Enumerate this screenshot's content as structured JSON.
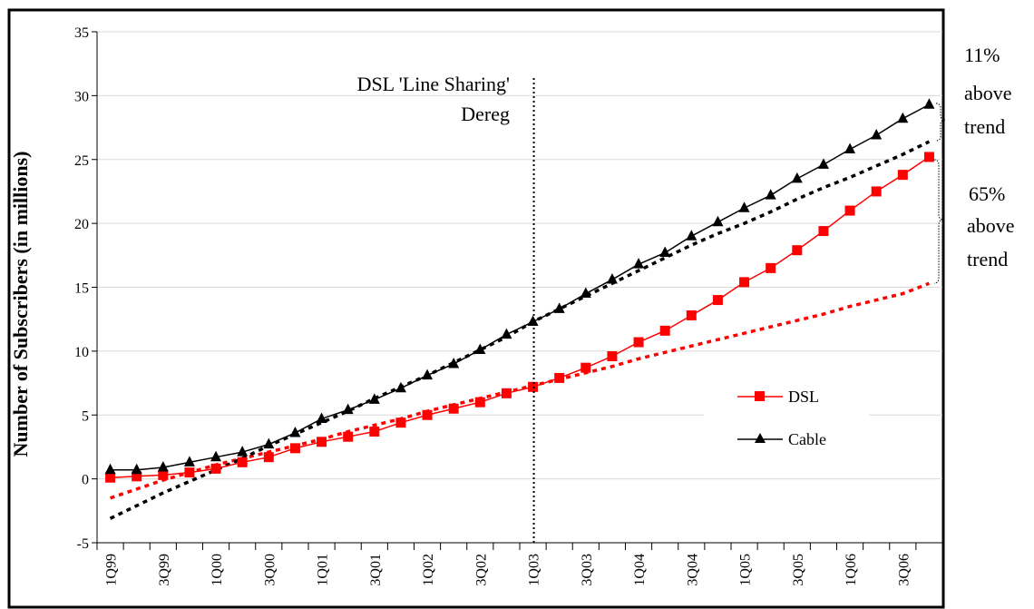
{
  "chart_data": {
    "type": "line",
    "title": "",
    "xlabel": "",
    "ylabel": "Number of Subscribers (in millions)",
    "ylim": [
      -5,
      35
    ],
    "yticks": [
      -5,
      0,
      5,
      10,
      15,
      20,
      25,
      30,
      35
    ],
    "grid": "horizontal",
    "legend_placement": "lower-right",
    "x_tick_labels": [
      "1Q99",
      "3Q99",
      "1Q00",
      "3Q00",
      "1Q01",
      "3Q01",
      "1Q02",
      "3Q02",
      "1Q03",
      "3Q03",
      "1Q04",
      "3Q04",
      "1Q05",
      "3Q05",
      "1Q06",
      "3Q06"
    ],
    "categories": [
      "1Q99",
      "2Q99",
      "3Q99",
      "4Q99",
      "1Q00",
      "2Q00",
      "3Q00",
      "4Q00",
      "1Q01",
      "2Q01",
      "3Q01",
      "4Q01",
      "1Q02",
      "2Q02",
      "3Q02",
      "4Q02",
      "1Q03",
      "2Q03",
      "3Q03",
      "4Q03",
      "1Q04",
      "2Q04",
      "3Q04",
      "4Q04",
      "1Q05",
      "2Q05",
      "3Q05",
      "4Q05",
      "1Q06",
      "2Q06",
      "3Q06",
      "4Q06"
    ],
    "series": [
      {
        "name": "DSL",
        "color": "#ff0000",
        "marker": "square",
        "values": [
          0.1,
          0.2,
          0.3,
          0.5,
          0.8,
          1.3,
          1.7,
          2.4,
          2.9,
          3.3,
          3.7,
          4.4,
          5.0,
          5.5,
          6.0,
          6.7,
          7.2,
          7.9,
          8.7,
          9.6,
          10.7,
          11.6,
          12.8,
          14.0,
          15.4,
          16.5,
          17.9,
          19.4,
          21.0,
          22.5,
          23.8,
          25.2
        ]
      },
      {
        "name": "Cable",
        "color": "#000000",
        "marker": "triangle",
        "values": [
          0.7,
          0.7,
          0.9,
          1.3,
          1.7,
          2.1,
          2.7,
          3.6,
          4.7,
          5.4,
          6.2,
          7.1,
          8.1,
          9.0,
          10.1,
          11.3,
          12.3,
          13.3,
          14.5,
          15.6,
          16.8,
          17.7,
          19.0,
          20.1,
          21.2,
          22.2,
          23.5,
          24.6,
          25.8,
          26.9,
          28.2,
          29.3
        ]
      }
    ],
    "trendlines": [
      {
        "series": "DSL",
        "color": "#ff0000",
        "style": "dotted",
        "values": [
          -1.5,
          -0.8,
          -0.1,
          0.5,
          1.1,
          1.6,
          2.1,
          2.6,
          3.1,
          3.7,
          4.2,
          4.7,
          5.3,
          5.8,
          6.3,
          6.8,
          7.3,
          7.8,
          8.3,
          8.8,
          9.4,
          9.9,
          10.4,
          10.9,
          11.4,
          11.9,
          12.4,
          12.9,
          13.5,
          14.0,
          14.5,
          15.3
        ]
      },
      {
        "series": "Cable",
        "color": "#000000",
        "style": "dotted",
        "values": [
          -3.1,
          -2.1,
          -1.1,
          -0.2,
          0.7,
          1.6,
          2.6,
          3.5,
          4.4,
          5.3,
          6.3,
          7.2,
          8.1,
          9.1,
          10.1,
          11.1,
          12.3,
          13.3,
          14.3,
          15.3,
          16.3,
          17.3,
          18.3,
          19.2,
          20.0,
          20.9,
          21.9,
          22.8,
          23.6,
          24.5,
          25.4,
          26.4
        ]
      }
    ],
    "annotations": {
      "dereg_label_line1": "DSL 'Line Sharing'",
      "dereg_label_line2": "Dereg",
      "dereg_x": "1Q03",
      "cable_line1": "11%",
      "cable_line2": "above",
      "cable_line3": "trend",
      "dsl_line1": "65%",
      "dsl_line2": "above",
      "dsl_line3": "trend"
    }
  }
}
